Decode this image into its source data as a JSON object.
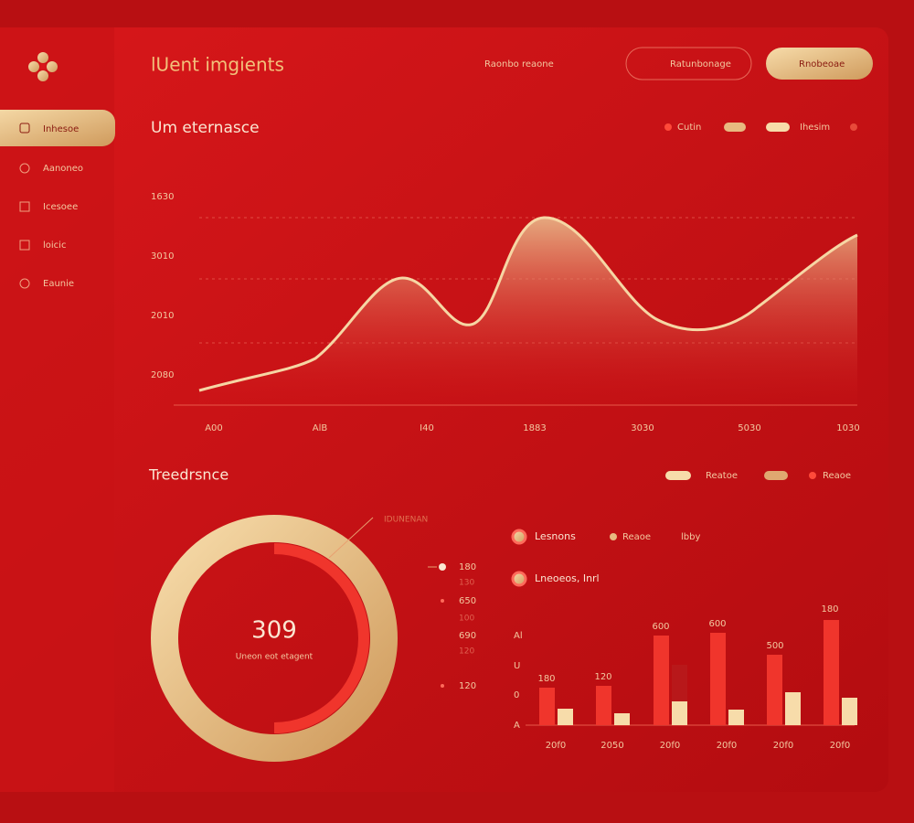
{
  "header": {
    "title": "lUent imgients",
    "nav_link": "Raonbo reaone",
    "buttons": [
      "Ratunbonage",
      "Rnobeoae"
    ]
  },
  "sidebar": {
    "items": [
      "Inhesoe",
      "Aanoneo",
      "Icesoee",
      "loicic",
      "Eaunie"
    ]
  },
  "line_panel": {
    "title": "Um eternasce",
    "legend": [
      "Cutin",
      "Ihesim"
    ],
    "y_labels": [
      "1630",
      "3010",
      "2010",
      "2080"
    ],
    "x_labels": [
      "A00",
      "AlB",
      "I40",
      "1883",
      "3030",
      "5030",
      "1030"
    ]
  },
  "trend_panel": {
    "title": "Treedrsnce",
    "legend": [
      "Reatoe",
      "Reaoe"
    ],
    "donut": {
      "value": 309,
      "caption": "Uneon eot etagent",
      "callout": "IDUNENAN"
    },
    "list": {
      "values": [
        180,
        650,
        690,
        120
      ],
      "faint": [
        130,
        100,
        120
      ]
    },
    "bar_legend": [
      "Lesnons",
      "Reaoe",
      "lbby",
      "Lneoeos, Inrl"
    ],
    "bar_labels": [
      180,
      120,
      600,
      600,
      500,
      180
    ],
    "bar_x_labels": [
      "20f0",
      "2050",
      "20f0",
      "20f0",
      "20f0",
      "20f0"
    ],
    "bar_y_labels": [
      "Al",
      "U",
      "0",
      "A"
    ]
  }
}
